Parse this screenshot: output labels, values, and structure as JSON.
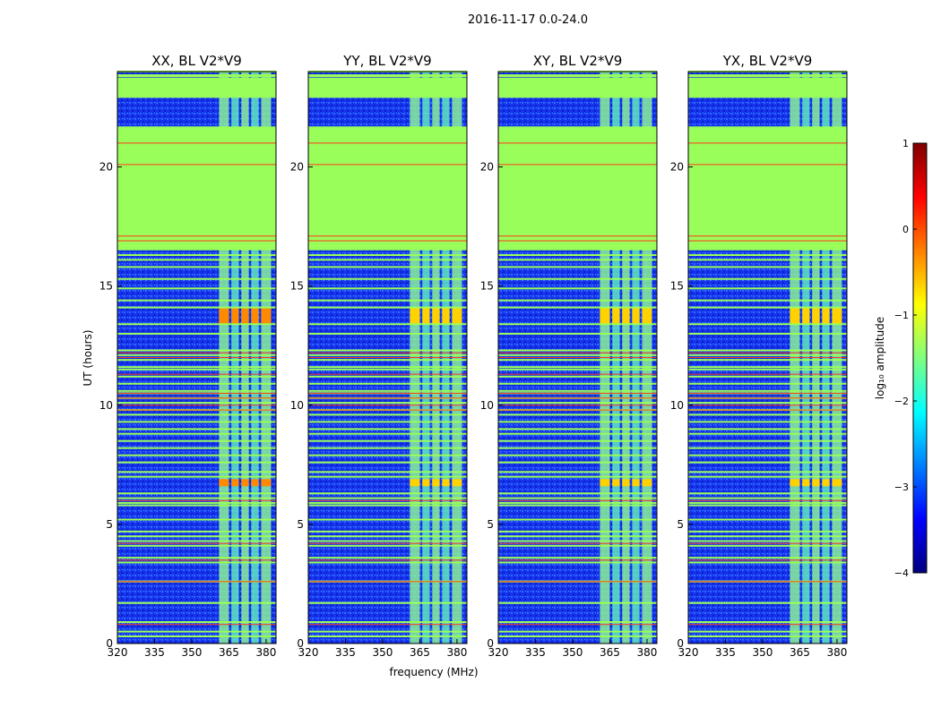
{
  "suptitle": "2016-11-17 0.0-24.0",
  "chart_data": {
    "type": "heatmap",
    "title": "2016-11-17 0.0-24.0",
    "xlabel": "frequency (MHz)",
    "ylabel": "UT (hours)",
    "xlim": [
      320,
      384
    ],
    "ylim": [
      0,
      24
    ],
    "xticks": [
      "320",
      "335",
      "350",
      "365",
      "380"
    ],
    "yticks": [
      "0",
      "5",
      "10",
      "15",
      "20"
    ],
    "panels": [
      {
        "title": "XX, BL V2*V9"
      },
      {
        "title": "YY, BL V2*V9"
      },
      {
        "title": "XY, BL V2*V9"
      },
      {
        "title": "YX, BL V2*V9"
      }
    ],
    "colorbar": {
      "label": "log₁₀ amplitude",
      "range": [
        -4,
        1
      ],
      "ticks": [
        "1",
        "0",
        "−1",
        "−2",
        "−3",
        "−4"
      ],
      "colormap": [
        "#00007f",
        "#0000ff",
        "#007fff",
        "#00ffff",
        "#7fff7f",
        "#ffff00",
        "#ff7f00",
        "#ff0000",
        "#7f0000"
      ]
    },
    "flagged_ranges_ut": [
      [
        16.5,
        21.7
      ],
      [
        22.9,
        23.7
      ]
    ],
    "flagged_color": "#9afe5a",
    "rfi_columns_mhz": [
      [
        361,
        365
      ],
      [
        366,
        369
      ],
      [
        370,
        373
      ],
      [
        374,
        377
      ],
      [
        378,
        382
      ]
    ],
    "strong_rfi_ut": [
      [
        13.4,
        14.1
      ],
      [
        6.6,
        6.9
      ]
    ]
  }
}
